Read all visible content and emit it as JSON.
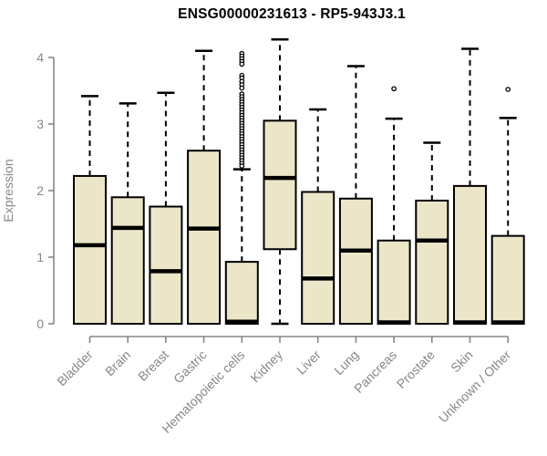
{
  "title": {
    "text": "ENSG00000231613 - RP5-943J3.1"
  },
  "chart_data": {
    "type": "boxplot",
    "title": "ENSG00000231613 - RP5-943J3.1",
    "xlabel": "",
    "ylabel": "Expression",
    "ylim": [
      0,
      4.3
    ],
    "yticks": [
      0,
      1,
      2,
      3,
      4
    ],
    "grid": false,
    "legend_position": "none",
    "whisker_linestyle": "dashed",
    "categories": [
      "Bladder",
      "Brain",
      "Breast",
      "Gastric",
      "Hematopoietic cells",
      "Kidney",
      "Liver",
      "Lung",
      "Pancreas",
      "Prostate",
      "Skin",
      "Unknown / Other"
    ],
    "series": [
      {
        "name": "Bladder",
        "whisker_low": 0,
        "q1": 0,
        "median": 1.18,
        "q3": 2.22,
        "whisker_high": 3.42,
        "outliers": []
      },
      {
        "name": "Brain",
        "whisker_low": 0,
        "q1": 0,
        "median": 1.44,
        "q3": 1.9,
        "whisker_high": 3.31,
        "outliers": []
      },
      {
        "name": "Breast",
        "whisker_low": 0,
        "q1": 0,
        "median": 0.79,
        "q3": 1.76,
        "whisker_high": 3.47,
        "outliers": []
      },
      {
        "name": "Gastric",
        "whisker_low": 0,
        "q1": 0,
        "median": 1.43,
        "q3": 2.6,
        "whisker_high": 4.1,
        "outliers": []
      },
      {
        "name": "Hematopoietic cells",
        "whisker_low": 0,
        "q1": 0,
        "median": 0.03,
        "q3": 0.93,
        "whisker_high": 2.32,
        "outliers": [
          4.06,
          4.02,
          3.98,
          3.94,
          3.9,
          3.73,
          3.69,
          3.64,
          3.59,
          3.54,
          3.45,
          3.41,
          3.37,
          3.33,
          3.29,
          3.25,
          3.21,
          3.17,
          3.13,
          3.09,
          3.05,
          3.01,
          2.97,
          2.93,
          2.89,
          2.85,
          2.81,
          2.77,
          2.73,
          2.69,
          2.65,
          2.61,
          2.57,
          2.53,
          2.49,
          2.45,
          2.41,
          2.37
        ]
      },
      {
        "name": "Kidney",
        "whisker_low": 0,
        "q1": 1.12,
        "median": 2.19,
        "q3": 3.05,
        "whisker_high": 4.27,
        "outliers": []
      },
      {
        "name": "Liver",
        "whisker_low": 0,
        "q1": 0,
        "median": 0.68,
        "q3": 1.98,
        "whisker_high": 3.22,
        "outliers": []
      },
      {
        "name": "Lung",
        "whisker_low": 0,
        "q1": 0,
        "median": 1.1,
        "q3": 1.88,
        "whisker_high": 3.87,
        "outliers": []
      },
      {
        "name": "Pancreas",
        "whisker_low": 0,
        "q1": 0,
        "median": 0.02,
        "q3": 1.25,
        "whisker_high": 3.08,
        "outliers": [
          3.53
        ]
      },
      {
        "name": "Prostate",
        "whisker_low": 0,
        "q1": 0,
        "median": 1.25,
        "q3": 1.85,
        "whisker_high": 2.72,
        "outliers": []
      },
      {
        "name": "Skin",
        "whisker_low": 0,
        "q1": 0,
        "median": 0.02,
        "q3": 2.07,
        "whisker_high": 4.13,
        "outliers": []
      },
      {
        "name": "Unknown / Other",
        "whisker_low": 0,
        "q1": 0,
        "median": 0.02,
        "q3": 1.32,
        "whisker_high": 3.09,
        "outliers": [
          3.52
        ]
      }
    ],
    "style": {
      "box_fill": "#ECE6C9",
      "box_stroke": "#000000",
      "median_color": "#000000",
      "whisker_color": "#000000",
      "outlier_stroke": "#000000",
      "axis_color": "#878787",
      "title_color": "#000000",
      "background": "#FFFFFF"
    }
  }
}
